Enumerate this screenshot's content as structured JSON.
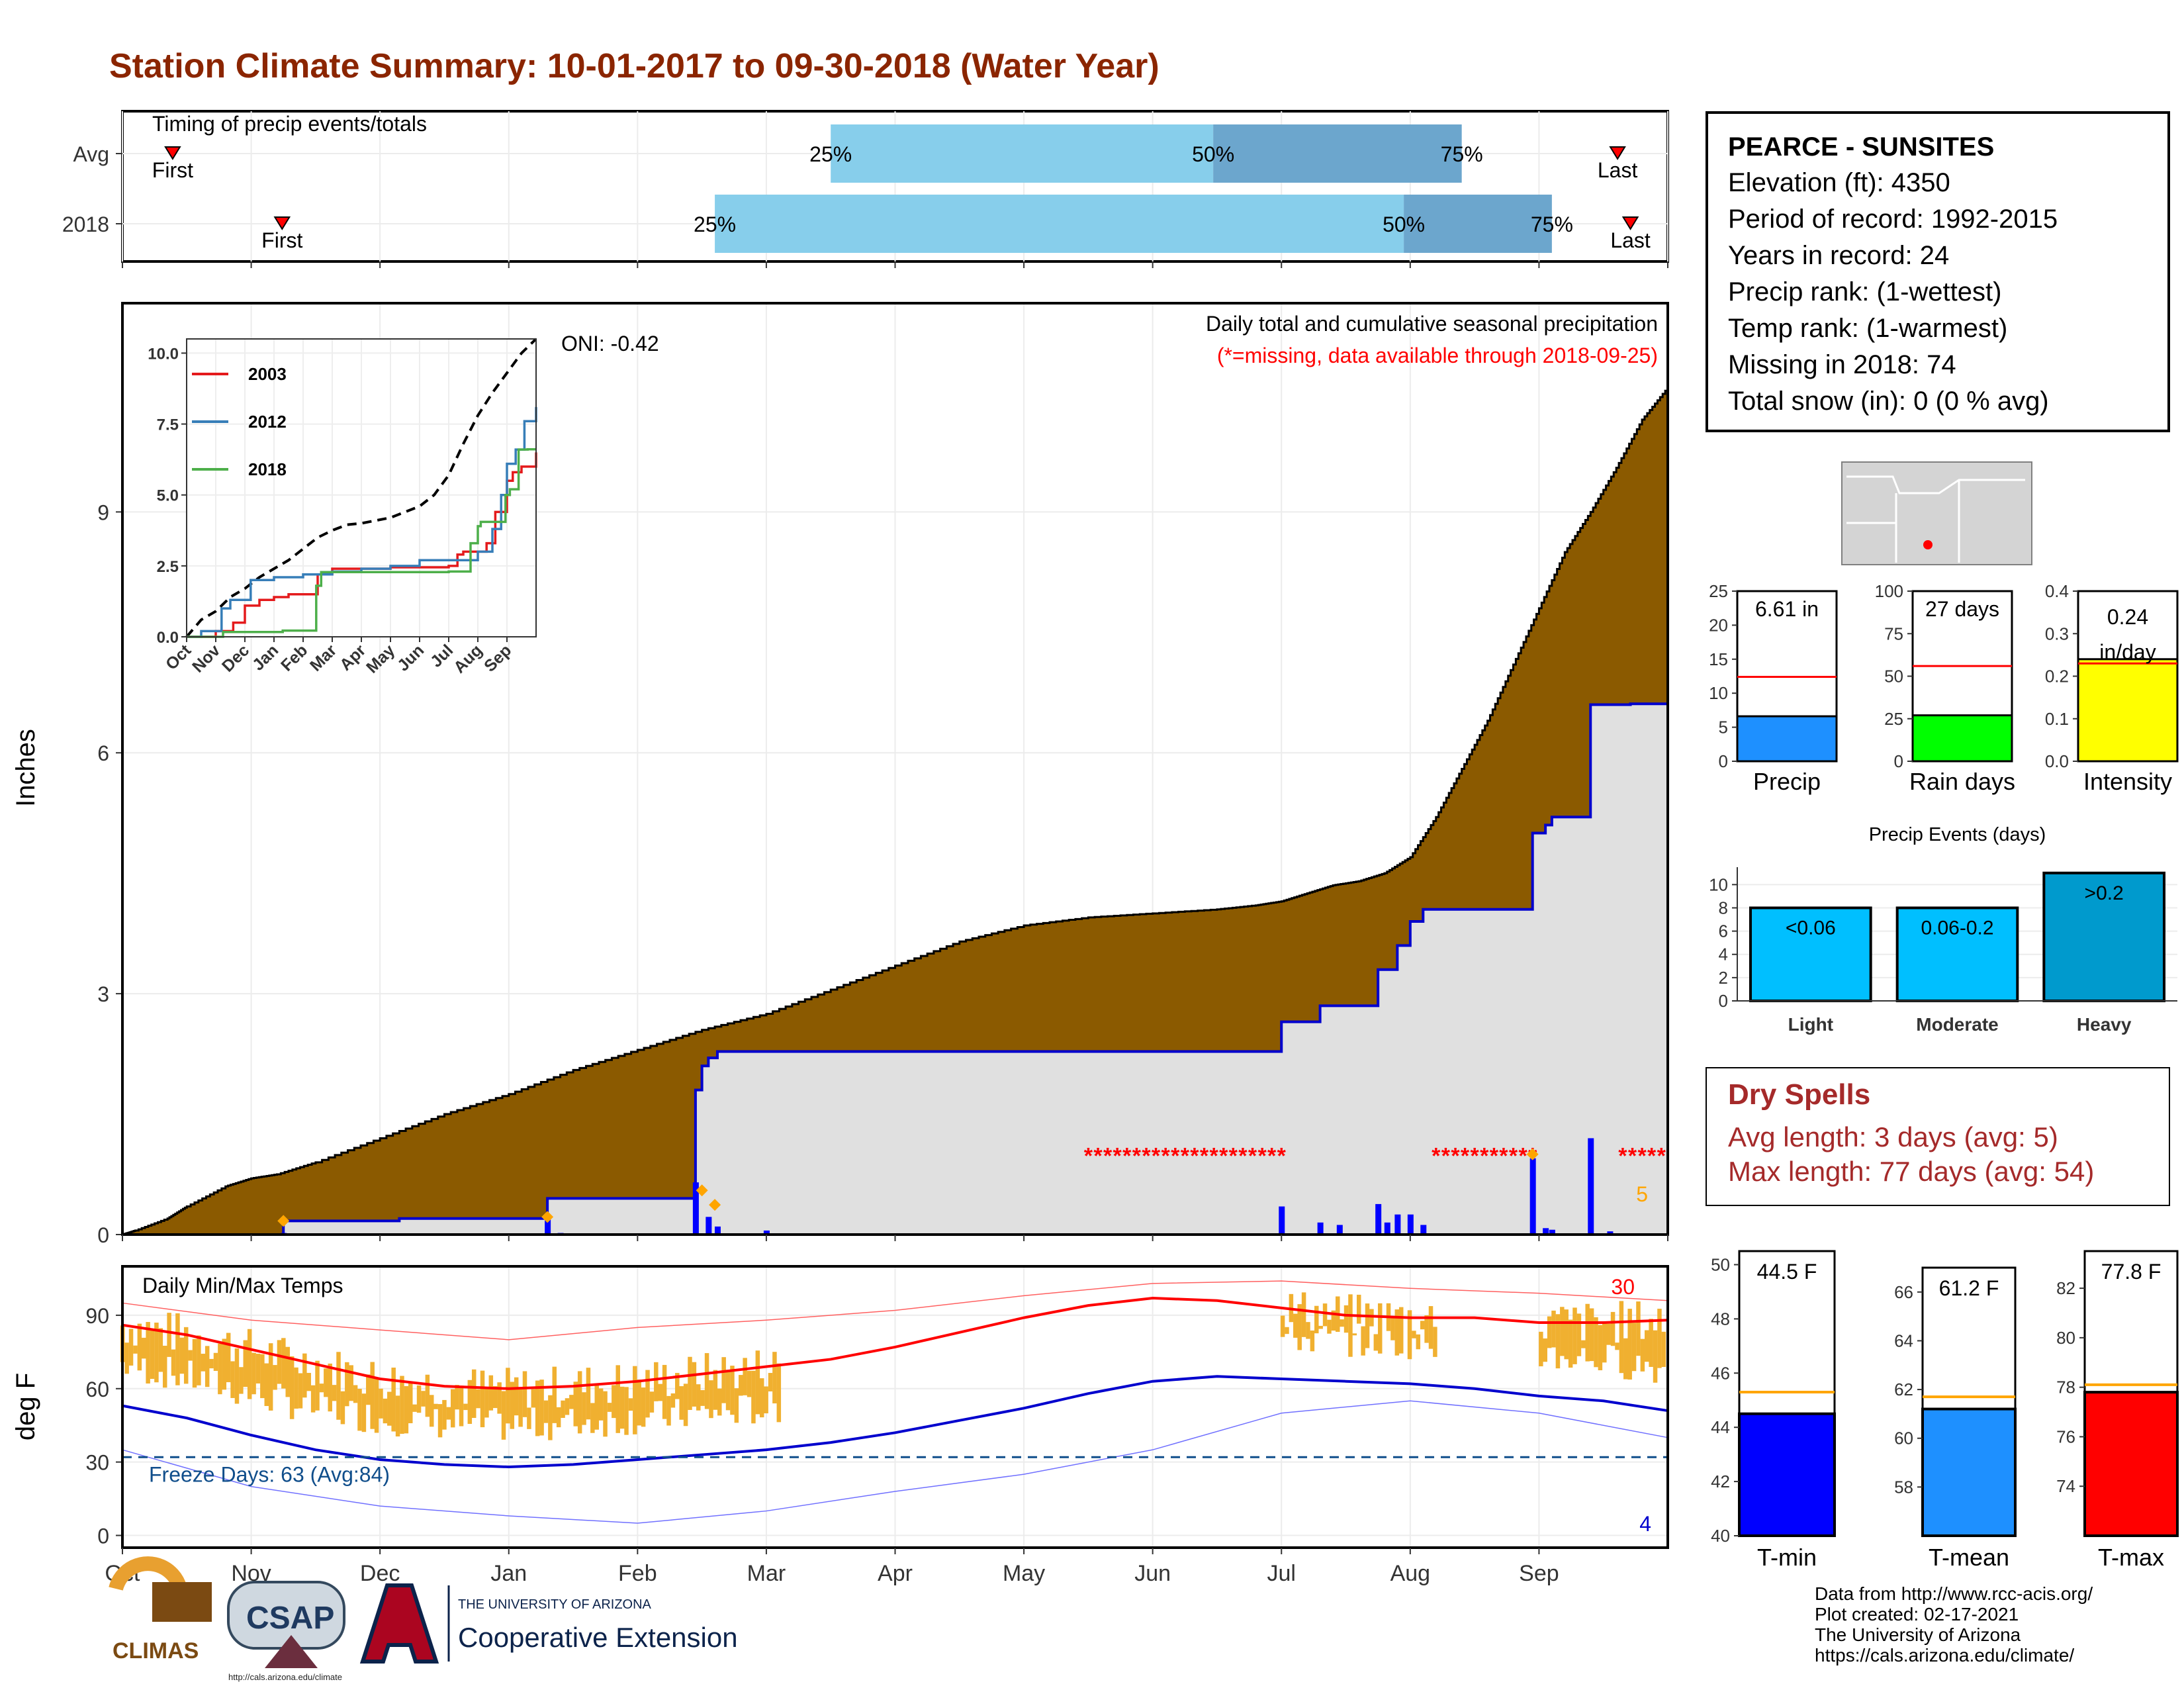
{
  "page": {
    "title": "Station Climate Summary: 10-01-2017 to 09-30-2018 (Water Year)",
    "credit": {
      "data_from": "Data from http://www.rcc-acis.org/",
      "plot_created": "Plot created: 02-17-2021",
      "university": "The University of Arizona",
      "url": "https://cals.arizona.edu/climate/"
    },
    "logos": {
      "climas": "CLIMAS",
      "csap": "CSAP",
      "csap_url": "http://cals.arizona.edu/climate",
      "ua_line1": "THE UNIVERSITY OF ARIZONA",
      "ua_line2": "Cooperative Extension"
    },
    "colors": {
      "title": "#8B2500",
      "precip_fill": "#8B5A00",
      "current_line": "#0000CD",
      "missing": "#FF0000",
      "temp_bar": "#F0B030"
    }
  },
  "station": {
    "name": "PEARCE - SUNSITES",
    "lines": [
      "Elevation (ft): 4350",
      "Period of record: 1992-2015",
      "Years in record: 24",
      "Precip rank:  (1-wettest)",
      "Temp rank:  (1-warmest)",
      "Missing in 2018: 74",
      "Total snow (in): 0 (0 % avg)"
    ]
  },
  "dry_spells": {
    "heading": "Dry Spells",
    "avg_length": "Avg length: 3 days (avg: 5)",
    "max_length": "Max length: 77 days (avg: 54)"
  },
  "chart_data": [
    {
      "id": "timing",
      "type": "bar",
      "title": "Timing of precip events/totals",
      "rows": [
        "Avg",
        "2018"
      ],
      "x_domain_months": [
        0,
        12
      ],
      "avg": {
        "first": 0.39,
        "p25": 5.5,
        "p50": 8.47,
        "p75": 10.4,
        "last": 11.61
      },
      "y2018": {
        "first": 1.24,
        "p25": 4.6,
        "p50": 9.95,
        "p75": 11.1,
        "last": 11.71
      },
      "labels": {
        "first": "First",
        "last": "Last",
        "p25": "25%",
        "p50": "50%",
        "p75": "75%"
      }
    },
    {
      "id": "precip",
      "type": "area",
      "title": "Daily total and cumulative seasonal precipitation",
      "subtitle": "(*=missing, data available through 2018-09-25)",
      "oni": "ONI: -0.42",
      "ylabel": "Inches",
      "ylim": [
        0,
        11.6
      ],
      "yticks": [
        0,
        3,
        6,
        9
      ],
      "corner_label": "5",
      "avg_cumulative": {
        "x": [
          0,
          0.1,
          0.35,
          0.5,
          0.8,
          1.0,
          1.2,
          1.5,
          2.0,
          2.5,
          3.0,
          3.5,
          4.0,
          4.5,
          5.0,
          5.5,
          6.0,
          6.5,
          7.0,
          7.5,
          8.0,
          8.5,
          8.8,
          9.0,
          9.2,
          9.4,
          9.6,
          9.8,
          10.0,
          10.2,
          10.4,
          10.6,
          10.8,
          11.0,
          11.2,
          11.4,
          11.6,
          11.8,
          12.0
        ],
        "y": [
          0,
          0.05,
          0.2,
          0.35,
          0.6,
          0.7,
          0.75,
          0.9,
          1.2,
          1.5,
          1.75,
          2.05,
          2.3,
          2.55,
          2.75,
          3.05,
          3.35,
          3.65,
          3.85,
          3.95,
          4.0,
          4.05,
          4.1,
          4.15,
          4.25,
          4.35,
          4.4,
          4.5,
          4.7,
          5.2,
          5.8,
          6.4,
          7.1,
          7.8,
          8.5,
          9.0,
          9.55,
          10.15,
          10.55
        ]
      },
      "cumulative_2018": {
        "x": [
          0,
          1.25,
          2.15,
          2.15,
          3.3,
          3.3,
          4.45,
          4.45,
          4.5,
          4.55,
          4.62,
          4.62,
          9.0,
          9.0,
          9.3,
          9.3,
          9.75,
          9.75,
          9.9,
          9.9,
          10.0,
          10.0,
          10.1,
          10.1,
          10.95,
          10.95,
          11.05,
          11.1,
          11.4,
          11.4,
          11.71
        ],
        "y": [
          0,
          0.17,
          0.17,
          0.2,
          0.22,
          0.45,
          0.5,
          1.8,
          2.1,
          2.2,
          2.25,
          2.28,
          2.3,
          2.65,
          2.7,
          2.85,
          2.9,
          3.3,
          3.35,
          3.6,
          3.65,
          3.9,
          3.95,
          4.05,
          4.05,
          5.0,
          5.1,
          5.2,
          5.25,
          6.6,
          6.61
        ]
      },
      "daily_bars": [
        {
          "x": 1.25,
          "v": 0.02
        },
        {
          "x": 3.3,
          "v": 0.22
        },
        {
          "x": 3.4,
          "v": 0.02
        },
        {
          "x": 4.45,
          "v": 0.65
        },
        {
          "x": 4.55,
          "v": 0.22
        },
        {
          "x": 4.62,
          "v": 0.1
        },
        {
          "x": 5.0,
          "v": 0.05
        },
        {
          "x": 9.0,
          "v": 0.35
        },
        {
          "x": 9.3,
          "v": 0.15
        },
        {
          "x": 9.45,
          "v": 0.12
        },
        {
          "x": 9.75,
          "v": 0.38
        },
        {
          "x": 9.82,
          "v": 0.15
        },
        {
          "x": 9.9,
          "v": 0.25
        },
        {
          "x": 10.0,
          "v": 0.25
        },
        {
          "x": 10.1,
          "v": 0.12
        },
        {
          "x": 10.95,
          "v": 0.95
        },
        {
          "x": 11.05,
          "v": 0.08
        },
        {
          "x": 11.1,
          "v": 0.06
        },
        {
          "x": 11.4,
          "v": 1.2
        },
        {
          "x": 11.55,
          "v": 0.04
        }
      ],
      "missing_ranges": [
        [
          7.5,
          9.0
        ],
        [
          10.2,
          11.0
        ],
        [
          11.65,
          12.0
        ]
      ],
      "missing_level": 1.0,
      "event_markers": [
        {
          "x": 1.25,
          "y": 0.17
        },
        {
          "x": 3.3,
          "y": 0.22
        },
        {
          "x": 4.5,
          "y": 0.55
        },
        {
          "x": 4.6,
          "y": 0.37
        },
        {
          "x": 10.95,
          "y": 1.0
        }
      ]
    },
    {
      "id": "inset",
      "type": "line",
      "x_tick_labels": [
        "Oct",
        "Nov",
        "Dec",
        "Jan",
        "Feb",
        "Mar",
        "Apr",
        "May",
        "Jun",
        "Jul",
        "Aug",
        "Sep"
      ],
      "yticks": [
        0.0,
        2.5,
        5.0,
        7.5,
        10.0
      ],
      "ylim": [
        0,
        10.5
      ],
      "series": [
        {
          "name": "2003",
          "color": "#E41A1C",
          "x": [
            0,
            1,
            1.6,
            2.0,
            2.5,
            3.0,
            3.5,
            4.5,
            5.0,
            5.6,
            7.0,
            9.0,
            9.3,
            9.5,
            10.3,
            10.6,
            11.0,
            11.2,
            11.5,
            12
          ],
          "y": [
            0,
            0.2,
            0.5,
            1.1,
            1.3,
            1.4,
            1.5,
            2.2,
            2.4,
            2.4,
            2.45,
            2.5,
            2.9,
            3.0,
            3.3,
            4.4,
            5.5,
            5.8,
            6.0,
            6.5
          ]
        },
        {
          "name": "2012",
          "color": "#377EB8",
          "x": [
            0,
            0.5,
            1.2,
            1.5,
            2.2,
            3.0,
            4.0,
            5.0,
            6.0,
            7.0,
            8.0,
            9.0,
            10.0,
            10.5,
            10.8,
            11.0,
            11.3,
            11.6,
            12
          ],
          "y": [
            0,
            0.2,
            1.0,
            1.3,
            2.0,
            2.1,
            2.2,
            2.3,
            2.4,
            2.5,
            2.7,
            2.7,
            3.0,
            3.8,
            5.0,
            6.1,
            6.6,
            7.6,
            8.1
          ]
        },
        {
          "name": "2018",
          "color": "#4DAF4A",
          "x": [
            0,
            1.25,
            2.15,
            3.3,
            4.45,
            4.62,
            9.0,
            9.75,
            10.0,
            10.1,
            10.95,
            11.1,
            11.4,
            11.71,
            12
          ],
          "y": [
            0,
            0.17,
            0.17,
            0.22,
            1.8,
            2.28,
            2.3,
            3.3,
            3.9,
            4.05,
            5.0,
            5.2,
            6.6,
            6.61,
            6.61
          ]
        }
      ],
      "avg_dashed": {
        "x": [
          0,
          0.5,
          1,
          1.5,
          2,
          2.5,
          3,
          3.5,
          4,
          4.5,
          5,
          5.5,
          6,
          6.5,
          7,
          7.5,
          8,
          8.5,
          9,
          9.5,
          10,
          10.5,
          11,
          11.5,
          12
        ],
        "y": [
          0,
          0.6,
          0.9,
          1.4,
          1.7,
          2.1,
          2.4,
          2.7,
          3.1,
          3.5,
          3.75,
          3.95,
          4.0,
          4.1,
          4.2,
          4.4,
          4.6,
          5.0,
          5.7,
          6.8,
          7.8,
          8.6,
          9.3,
          10.0,
          10.5
        ]
      }
    },
    {
      "id": "temps",
      "type": "line",
      "title": "Daily Min/Max Temps",
      "ylabel": "deg F",
      "ylim": [
        -5,
        110
      ],
      "yticks": [
        0,
        30,
        60,
        90
      ],
      "freeze_label": "Freeze Days: 63 (Avg:84)",
      "freeze_line": 32,
      "count_hot": "30",
      "count_cold": "4",
      "x_tick_labels": [
        "Oct",
        "Nov",
        "Dec",
        "Jan",
        "Feb",
        "Mar",
        "Apr",
        "May",
        "Jun",
        "Jul",
        "Aug",
        "Sep"
      ],
      "normal_max": {
        "x": [
          0,
          0.5,
          1,
          1.5,
          2,
          2.5,
          3,
          3.5,
          4,
          4.5,
          5,
          5.5,
          6,
          6.5,
          7,
          7.5,
          8,
          8.5,
          9,
          9.5,
          10,
          10.5,
          11,
          11.5,
          12
        ],
        "y": [
          86,
          82,
          76,
          70,
          64,
          61,
          60,
          61,
          63,
          66,
          69,
          72,
          77,
          83,
          89,
          94,
          97,
          96,
          93,
          90,
          89,
          89,
          87,
          87,
          88
        ]
      },
      "normal_min": {
        "x": [
          0,
          0.5,
          1,
          1.5,
          2,
          2.5,
          3,
          3.5,
          4,
          4.5,
          5,
          5.5,
          6,
          6.5,
          7,
          7.5,
          8,
          8.5,
          9,
          9.5,
          10,
          10.5,
          11,
          11.5,
          12
        ],
        "y": [
          53,
          48,
          41,
          35,
          31,
          29,
          28,
          29,
          31,
          33,
          35,
          38,
          42,
          47,
          52,
          58,
          63,
          65,
          64,
          63,
          62,
          60,
          57,
          55,
          51
        ]
      },
      "record_max": {
        "x": [
          0,
          1,
          2,
          3,
          4,
          5,
          6,
          7,
          8,
          9,
          10,
          11,
          12
        ],
        "y": [
          95,
          88,
          84,
          80,
          85,
          88,
          92,
          98,
          103,
          104,
          101,
          99,
          96
        ]
      },
      "record_min": {
        "x": [
          0,
          1,
          2,
          3,
          4,
          5,
          6,
          7,
          8,
          9,
          10,
          11,
          12
        ],
        "y": [
          35,
          20,
          12,
          8,
          5,
          10,
          18,
          25,
          35,
          50,
          55,
          50,
          40
        ]
      },
      "data_gaps": [
        [
          5.1,
          9.0
        ],
        [
          10.2,
          11.0
        ]
      ]
    },
    {
      "id": "mini_precip",
      "type": "bar",
      "categories": [
        "Precip",
        "Rain days",
        "Intensity"
      ],
      "values": [
        6.61,
        27,
        0.24
      ],
      "averages": [
        12.4,
        56,
        0.23
      ],
      "labels": [
        "6.61 in",
        "27 days",
        "0.24 in/day"
      ],
      "ylims": [
        [
          0,
          25
        ],
        [
          0,
          100
        ],
        [
          0,
          0.4
        ]
      ],
      "colors": [
        "#1E90FF",
        "#00FF00",
        "#FFFF00"
      ]
    },
    {
      "id": "events",
      "type": "bar",
      "title": "Precip Events (days)",
      "categories": [
        "Light",
        "Moderate",
        "Heavy"
      ],
      "values": [
        8,
        8,
        11
      ],
      "bar_labels": [
        "<0.06",
        "0.06-0.2",
        ">0.2"
      ],
      "ylim": [
        0,
        11.5
      ],
      "colors": [
        "#00BFFF",
        "#00BFFF",
        "#009ACD"
      ]
    },
    {
      "id": "mini_temp",
      "type": "bar",
      "categories": [
        "T-min",
        "T-mean",
        "T-max"
      ],
      "values": [
        44.5,
        61.2,
        77.8
      ],
      "averages": [
        45.3,
        61.7,
        78.1
      ],
      "labels": [
        "44.5 F",
        "61.2 F",
        "77.8 F"
      ],
      "ylims": [
        [
          40,
          50.5
        ],
        [
          56,
          67
        ],
        [
          72,
          83.5
        ]
      ],
      "colors": [
        "#0000FF",
        "#1E90FF",
        "#FF0000"
      ]
    }
  ]
}
